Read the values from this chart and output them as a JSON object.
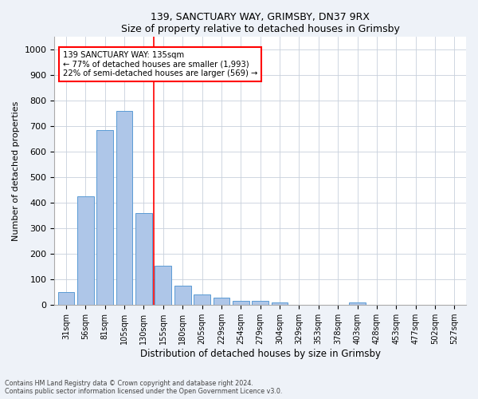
{
  "title1": "139, SANCTUARY WAY, GRIMSBY, DN37 9RX",
  "title2": "Size of property relative to detached houses in Grimsby",
  "xlabel": "Distribution of detached houses by size in Grimsby",
  "ylabel": "Number of detached properties",
  "categories": [
    "31sqm",
    "56sqm",
    "81sqm",
    "105sqm",
    "130sqm",
    "155sqm",
    "180sqm",
    "205sqm",
    "229sqm",
    "254sqm",
    "279sqm",
    "304sqm",
    "329sqm",
    "353sqm",
    "378sqm",
    "403sqm",
    "428sqm",
    "453sqm",
    "477sqm",
    "502sqm",
    "527sqm"
  ],
  "values": [
    52,
    425,
    685,
    760,
    360,
    155,
    75,
    40,
    28,
    17,
    17,
    10,
    0,
    0,
    0,
    10,
    0,
    0,
    0,
    0,
    0
  ],
  "bar_color": "#aec6e8",
  "bar_edge_color": "#5b9bd5",
  "vline_x": 4.5,
  "vline_color": "red",
  "annotation_text": "139 SANCTUARY WAY: 135sqm\n← 77% of detached houses are smaller (1,993)\n22% of semi-detached houses are larger (569) →",
  "annotation_box_color": "white",
  "annotation_box_edgecolor": "red",
  "ylim": [
    0,
    1050
  ],
  "yticks": [
    0,
    100,
    200,
    300,
    400,
    500,
    600,
    700,
    800,
    900,
    1000
  ],
  "footer1": "Contains HM Land Registry data © Crown copyright and database right 2024.",
  "footer2": "Contains public sector information licensed under the Open Government Licence v3.0.",
  "bg_color": "#eef2f8",
  "plot_bg_color": "white",
  "grid_color": "#c8d0dc"
}
